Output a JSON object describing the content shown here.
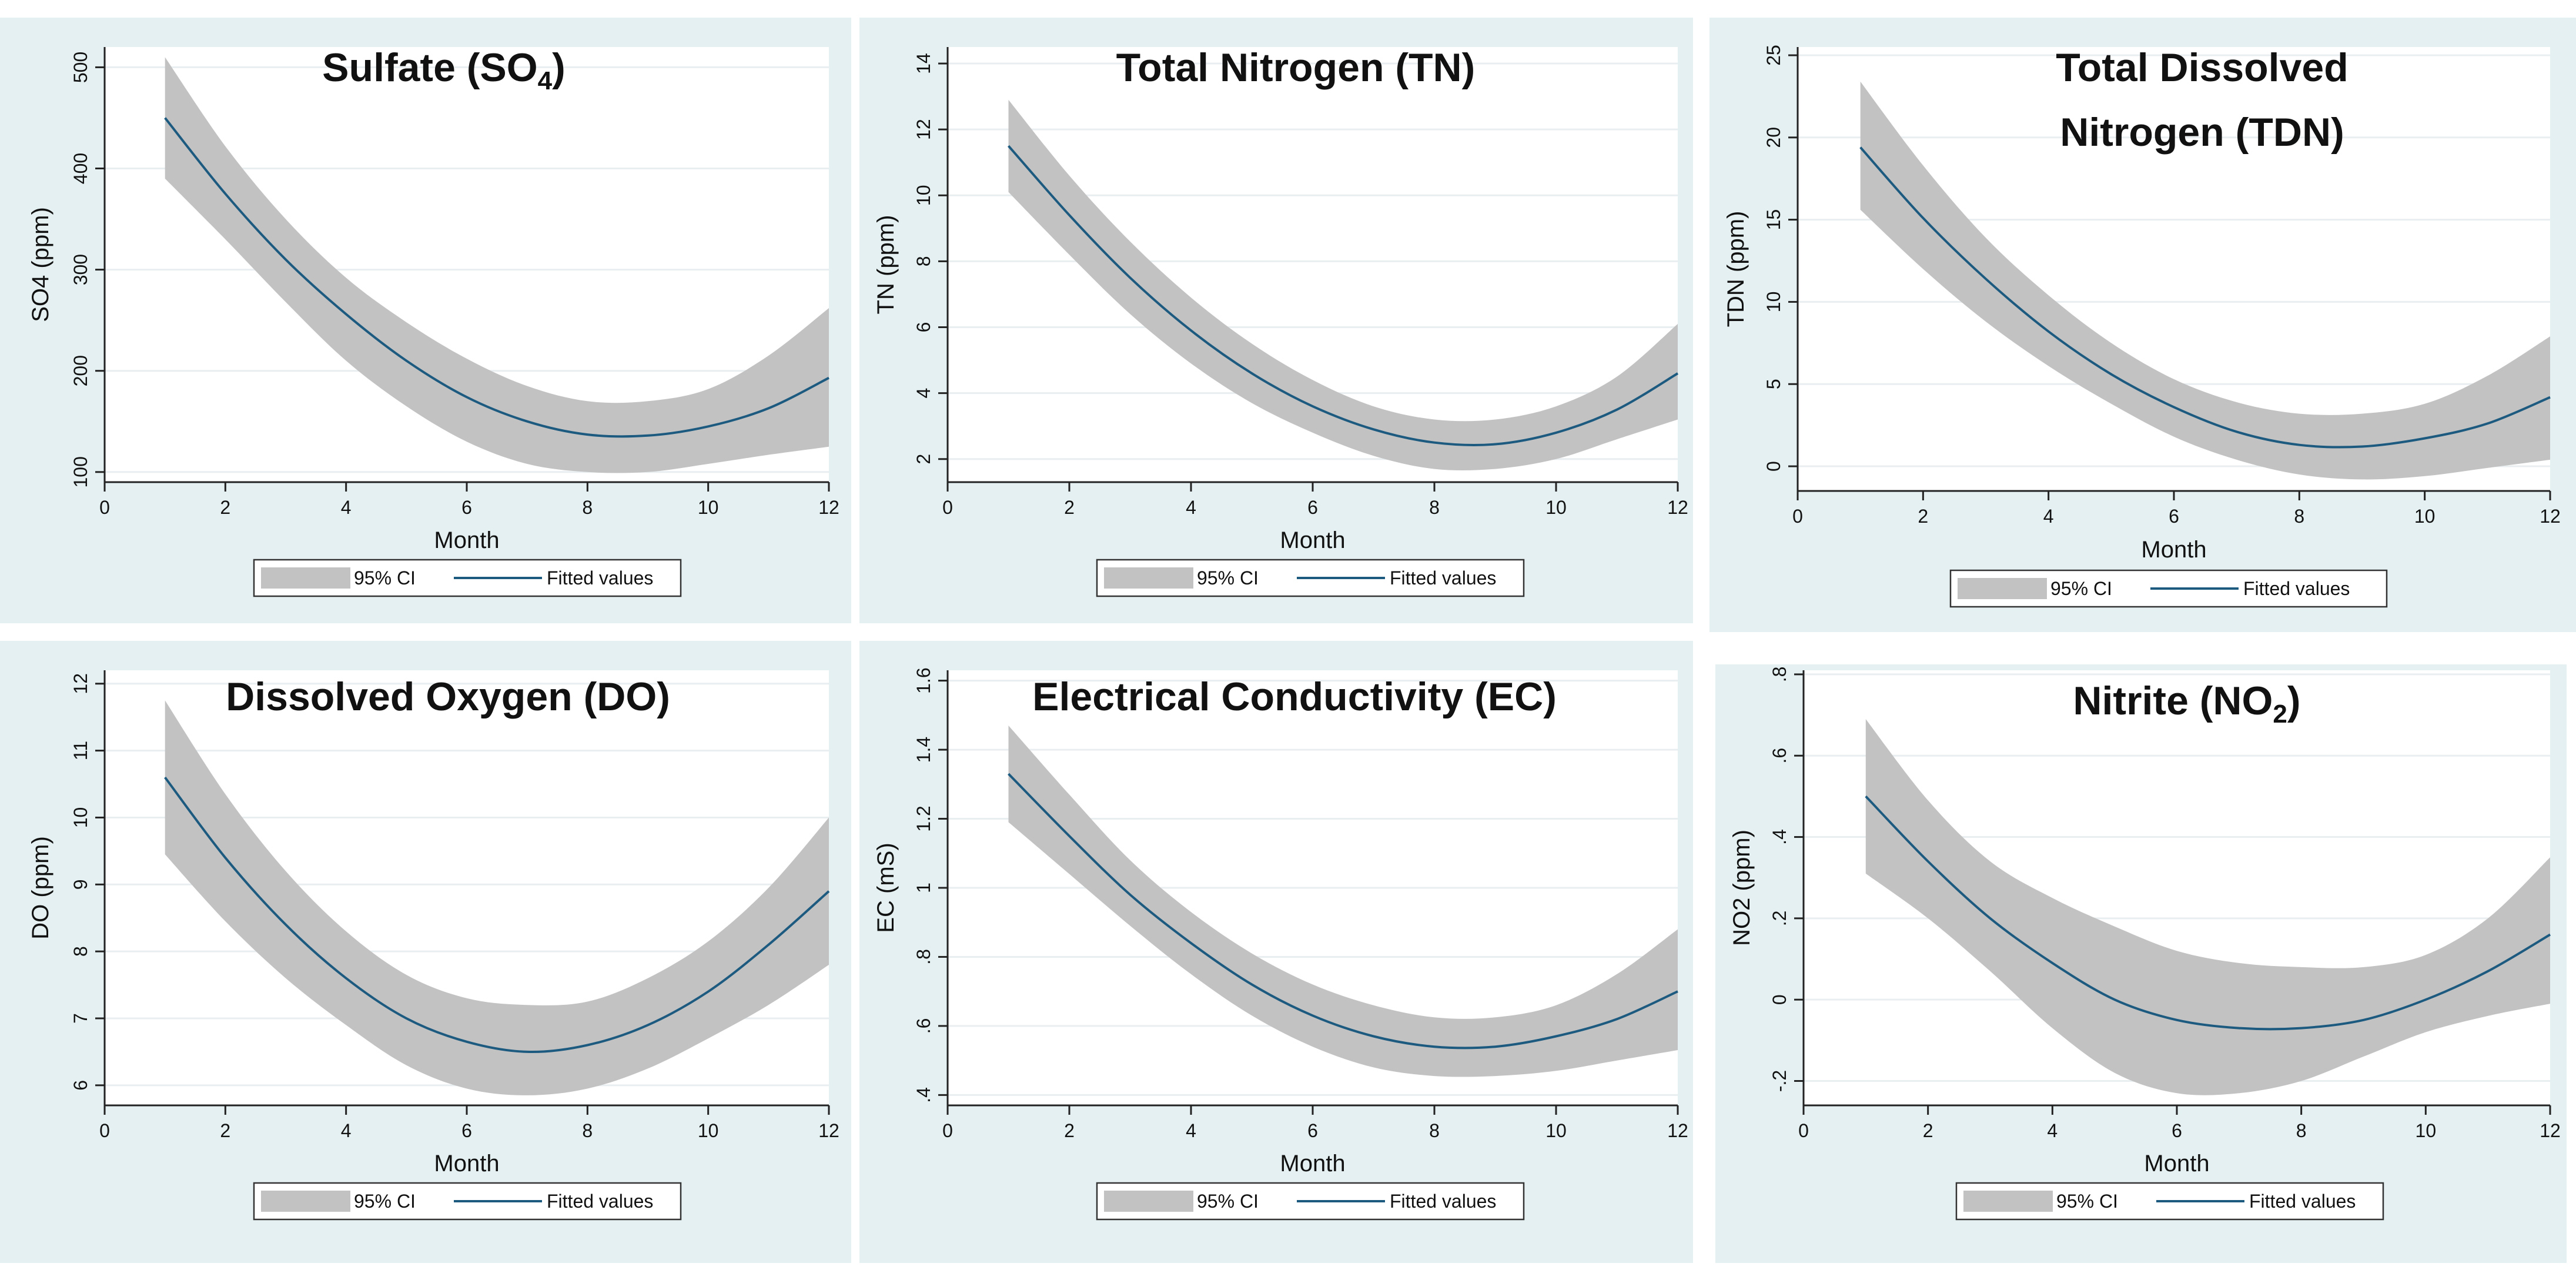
{
  "legend": {
    "ci_label": "95% CI",
    "fit_label": "Fitted values"
  },
  "colors": {
    "panel_bg": "#e4f0f1",
    "plot_bg": "#ffffff",
    "ci_fill": "#c2c2c2",
    "fit_line": "#1d5a80",
    "grid": "#e9eef0"
  },
  "chart_data": [
    {
      "type": "area",
      "title_main": "Sulfate (SO",
      "title_sub": "4",
      "title_end": ")",
      "xlabel": "Month",
      "ylabel": "SO4 (ppm)",
      "xlim": [
        0,
        12
      ],
      "ylim": [
        90,
        520
      ],
      "xticks": [
        0,
        2,
        4,
        6,
        8,
        10,
        12
      ],
      "yticks": [
        100,
        200,
        300,
        400,
        500
      ],
      "ytick_labels": [
        "100",
        "200",
        "300",
        "400",
        "500"
      ],
      "grid": true,
      "legend_position": "bottom",
      "x": [
        1,
        2,
        3,
        4,
        5,
        6,
        7,
        8,
        9,
        10,
        11,
        12
      ],
      "series": [
        {
          "name": "Fitted values",
          "values": [
            450,
            375,
            310,
            256,
            210,
            174,
            150,
            137,
            136,
            145,
            163,
            193
          ]
        },
        {
          "name": "95% CI",
          "lower": [
            390,
            330,
            268,
            210,
            165,
            130,
            108,
            100,
            100,
            108,
            117,
            125
          ],
          "upper": [
            510,
            422,
            350,
            292,
            248,
            212,
            185,
            170,
            170,
            182,
            215,
            262
          ]
        }
      ]
    },
    {
      "type": "area",
      "title_main": "Total Nitrogen (TN)",
      "title_sub": "",
      "title_end": "",
      "xlabel": "Month",
      "ylabel": "TN (ppm)",
      "xlim": [
        0,
        12
      ],
      "ylim": [
        1.3,
        14.5
      ],
      "xticks": [
        0,
        2,
        4,
        6,
        8,
        10,
        12
      ],
      "yticks": [
        2,
        4,
        6,
        8,
        10,
        12,
        14
      ],
      "ytick_labels": [
        "2",
        "4",
        "6",
        "8",
        "10",
        "12",
        "14"
      ],
      "grid": true,
      "legend_position": "bottom",
      "x": [
        1,
        2,
        3,
        4,
        5,
        6,
        7,
        8,
        9,
        10,
        11,
        12
      ],
      "series": [
        {
          "name": "Fitted values",
          "values": [
            11.5,
            9.4,
            7.5,
            5.9,
            4.6,
            3.6,
            2.9,
            2.5,
            2.45,
            2.8,
            3.5,
            4.6
          ]
        },
        {
          "name": "95% CI",
          "lower": [
            10.1,
            8.2,
            6.4,
            4.9,
            3.7,
            2.8,
            2.1,
            1.7,
            1.7,
            2.0,
            2.6,
            3.2
          ],
          "upper": [
            12.9,
            10.6,
            8.6,
            6.9,
            5.5,
            4.4,
            3.6,
            3.2,
            3.2,
            3.6,
            4.5,
            6.1
          ]
        }
      ]
    },
    {
      "type": "area",
      "title_main": "Total Dissolved",
      "title_line2": "Nitrogen (TDN)",
      "title_sub": "",
      "title_end": "",
      "xlabel": "Month",
      "ylabel": "TDN (ppm)",
      "xlim": [
        0,
        12
      ],
      "ylim": [
        -1.5,
        25.5
      ],
      "xticks": [
        0,
        2,
        4,
        6,
        8,
        10,
        12
      ],
      "yticks": [
        0,
        5,
        10,
        15,
        20,
        25
      ],
      "ytick_labels": [
        "0",
        "5",
        "10",
        "15",
        "20",
        "25"
      ],
      "grid": true,
      "legend_position": "bottom",
      "x": [
        1,
        2,
        3,
        4,
        5,
        6,
        7,
        8,
        9,
        10,
        11,
        12
      ],
      "series": [
        {
          "name": "Fitted values",
          "values": [
            19.4,
            15.1,
            11.4,
            8.2,
            5.6,
            3.6,
            2.1,
            1.3,
            1.2,
            1.7,
            2.6,
            4.2
          ]
        },
        {
          "name": "95% CI",
          "lower": [
            15.6,
            12.0,
            8.8,
            6.1,
            3.8,
            1.8,
            0.4,
            -0.5,
            -0.8,
            -0.6,
            -0.1,
            0.4
          ],
          "upper": [
            23.4,
            18.3,
            13.9,
            10.4,
            7.5,
            5.3,
            3.9,
            3.2,
            3.2,
            3.8,
            5.5,
            7.9
          ]
        }
      ]
    },
    {
      "type": "area",
      "title_main": "Dissolved Oxygen (DO)",
      "title_sub": "",
      "title_end": "",
      "xlabel": "Month",
      "ylabel": "DO (ppm)",
      "xlim": [
        0,
        12
      ],
      "ylim": [
        5.7,
        12.2
      ],
      "xticks": [
        0,
        2,
        4,
        6,
        8,
        10,
        12
      ],
      "yticks": [
        6,
        7,
        8,
        9,
        10,
        11,
        12
      ],
      "ytick_labels": [
        "6",
        "7",
        "8",
        "9",
        "10",
        "11",
        "12"
      ],
      "grid": true,
      "legend_position": "bottom",
      "x": [
        1,
        2,
        3,
        4,
        5,
        6,
        7,
        8,
        9,
        10,
        11,
        12
      ],
      "series": [
        {
          "name": "Fitted values",
          "values": [
            10.6,
            9.4,
            8.4,
            7.6,
            7.0,
            6.65,
            6.5,
            6.6,
            6.9,
            7.4,
            8.1,
            8.9
          ]
        },
        {
          "name": "95% CI",
          "lower": [
            9.45,
            8.45,
            7.6,
            6.9,
            6.3,
            5.95,
            5.85,
            5.95,
            6.25,
            6.7,
            7.2,
            7.8
          ],
          "upper": [
            11.75,
            10.35,
            9.2,
            8.3,
            7.65,
            7.3,
            7.2,
            7.25,
            7.6,
            8.15,
            8.95,
            10.0
          ]
        }
      ]
    },
    {
      "type": "area",
      "title_main": "Electrical Conductivity (EC)",
      "title_sub": "",
      "title_end": "",
      "xlabel": "Month",
      "ylabel": "EC (mS)",
      "xlim": [
        0,
        12
      ],
      "ylim": [
        0.37,
        1.63
      ],
      "xticks": [
        0,
        2,
        4,
        6,
        8,
        10,
        12
      ],
      "yticks": [
        0.4,
        0.6,
        0.8,
        1.0,
        1.2,
        1.4,
        1.6
      ],
      "ytick_labels": [
        ".4",
        ".6",
        ".8",
        "1",
        "1.2",
        "1.4",
        "1.6"
      ],
      "grid": true,
      "legend_position": "bottom",
      "x": [
        1,
        2,
        3,
        4,
        5,
        6,
        7,
        8,
        9,
        10,
        11,
        12
      ],
      "series": [
        {
          "name": "Fitted values",
          "values": [
            1.33,
            1.15,
            0.98,
            0.84,
            0.72,
            0.63,
            0.57,
            0.54,
            0.54,
            0.57,
            0.62,
            0.7
          ]
        },
        {
          "name": "95% CI",
          "lower": [
            1.19,
            1.04,
            0.89,
            0.75,
            0.63,
            0.54,
            0.48,
            0.455,
            0.455,
            0.47,
            0.5,
            0.53
          ],
          "upper": [
            1.47,
            1.27,
            1.08,
            0.93,
            0.81,
            0.72,
            0.66,
            0.625,
            0.625,
            0.66,
            0.75,
            0.88
          ]
        }
      ]
    },
    {
      "type": "area",
      "title_main": "Nitrite (NO",
      "title_sub": "2",
      "title_end": ")",
      "xlabel": "Month",
      "ylabel": "NO2 (ppm)",
      "xlim": [
        0,
        12
      ],
      "ylim": [
        -0.26,
        0.81
      ],
      "xticks": [
        0,
        2,
        4,
        6,
        8,
        10,
        12
      ],
      "yticks": [
        -0.2,
        0,
        0.2,
        0.4,
        0.6,
        0.8
      ],
      "ytick_labels": [
        "-.2",
        "0",
        ".2",
        ".4",
        ".6",
        ".8"
      ],
      "grid": true,
      "legend_position": "bottom",
      "x": [
        1,
        2,
        3,
        4,
        5,
        6,
        7,
        8,
        9,
        10,
        11,
        12
      ],
      "series": [
        {
          "name": "Fitted values",
          "values": [
            0.5,
            0.34,
            0.2,
            0.09,
            0.0,
            -0.05,
            -0.07,
            -0.07,
            -0.05,
            0.0,
            0.07,
            0.16
          ]
        },
        {
          "name": "95% CI",
          "lower": [
            0.31,
            0.2,
            0.07,
            -0.07,
            -0.18,
            -0.23,
            -0.23,
            -0.2,
            -0.14,
            -0.08,
            -0.04,
            -0.01
          ],
          "upper": [
            0.69,
            0.49,
            0.34,
            0.25,
            0.18,
            0.12,
            0.09,
            0.08,
            0.08,
            0.11,
            0.2,
            0.35
          ]
        }
      ]
    }
  ]
}
